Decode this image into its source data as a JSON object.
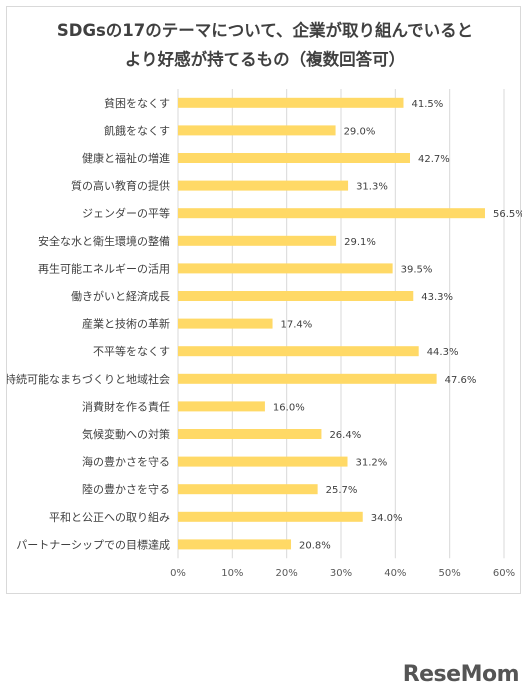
{
  "chart_data": {
    "type": "bar",
    "orientation": "horizontal",
    "title_lines": [
      "SDGsの17のテーマについて、企業が取り組んでいると",
      "より好感が持てるもの（複数回答可）"
    ],
    "categories": [
      "貧困をなくす",
      "飢餓をなくす",
      "健康と福祉の増進",
      "質の高い教育の提供",
      "ジェンダーの平等",
      "安全な水と衛生環境の整備",
      "再生可能エネルギーの活用",
      "働きがいと経済成長",
      "産業と技術の革新",
      "不平等をなくす",
      "持続可能なまちづくりと地域社会",
      "消費財を作る責任",
      "気候変動への対策",
      "海の豊かさを守る",
      "陸の豊かさを守る",
      "平和と公正への取り組み",
      "パートナーシップでの目標達成"
    ],
    "values": [
      41.5,
      29.0,
      42.7,
      31.3,
      56.5,
      29.1,
      39.5,
      43.3,
      17.4,
      44.3,
      47.6,
      16.0,
      26.4,
      31.2,
      25.7,
      34.0,
      20.8
    ],
    "value_labels": [
      "41.5%",
      "29.0%",
      "42.7%",
      "31.3%",
      "56.5%",
      "29.1%",
      "39.5%",
      "43.3%",
      "17.4%",
      "44.3%",
      "47.6%",
      "16.0%",
      "26.4%",
      "31.2%",
      "25.7%",
      "34.0%",
      "20.8%"
    ],
    "xlim": [
      0,
      60
    ],
    "x_ticks": [
      0,
      10,
      20,
      30,
      40,
      50,
      60
    ],
    "x_tick_labels": [
      "0%",
      "10%",
      "20%",
      "30%",
      "40%",
      "50%",
      "60%"
    ],
    "grid": true,
    "bar_color": "#ffd966"
  },
  "watermark": {
    "text": "ReseMom"
  }
}
